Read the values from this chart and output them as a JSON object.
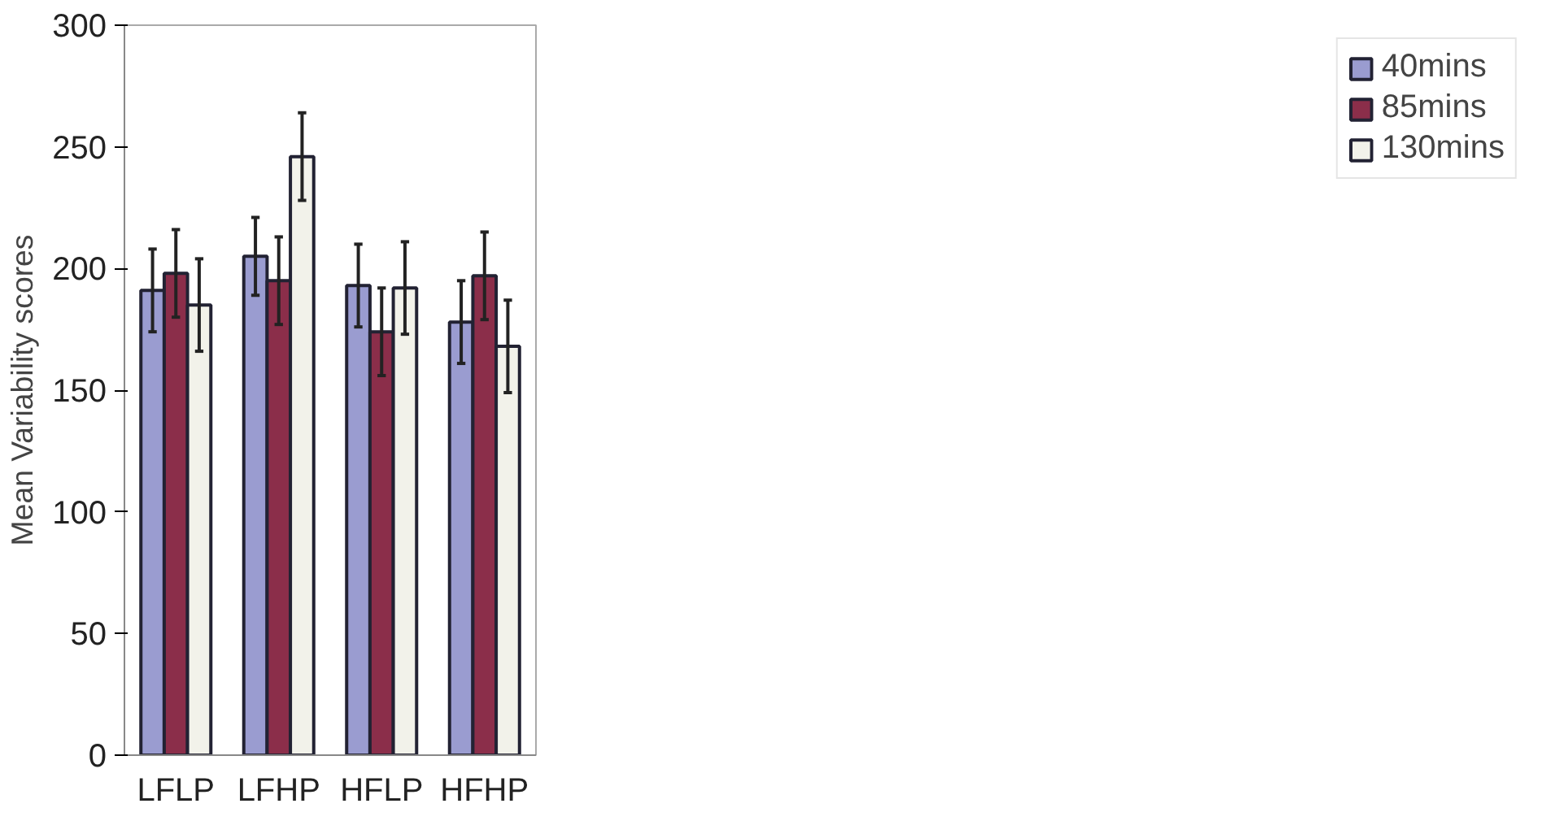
{
  "chart_data": {
    "type": "bar",
    "ylabel": "Mean Variability scores",
    "categories": [
      "LFLP",
      "LFHP",
      "HFLP",
      "HFHP"
    ],
    "series": [
      {
        "name": "40mins",
        "color": "#9a9cd0",
        "values": [
          191,
          205,
          193,
          178
        ],
        "errors": [
          17,
          16,
          17,
          17
        ]
      },
      {
        "name": "85mins",
        "color": "#8b2e4a",
        "values": [
          198,
          195,
          174,
          197
        ],
        "errors": [
          18,
          18,
          18,
          18
        ]
      },
      {
        "name": "130mins",
        "color": "#f2f2ea",
        "values": [
          185,
          246,
          192,
          168
        ],
        "errors": [
          19,
          18,
          19,
          19
        ]
      }
    ],
    "ylim": [
      0,
      300
    ],
    "yticks": [
      0,
      50,
      100,
      150,
      200,
      250,
      300
    ],
    "grid": false,
    "legend": "right"
  }
}
